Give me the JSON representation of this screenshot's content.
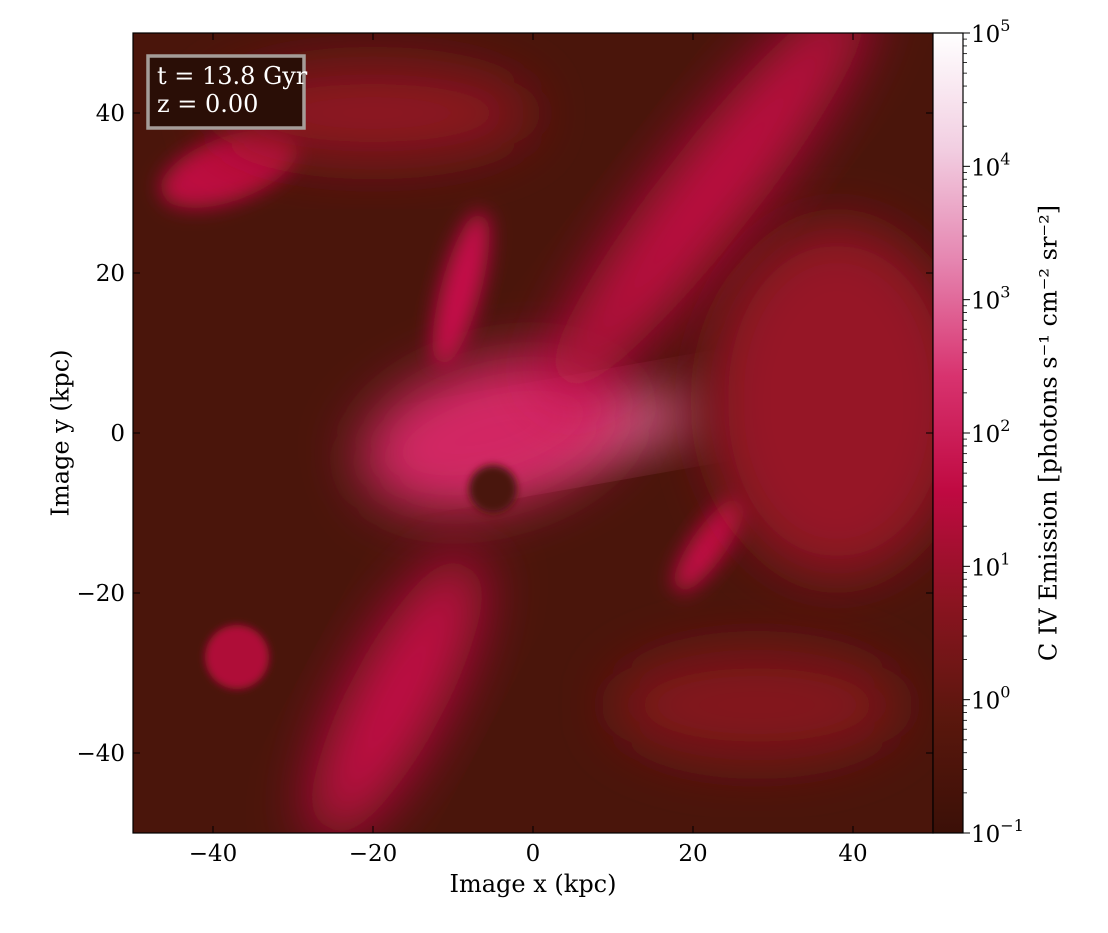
{
  "chart_data": {
    "type": "heatmap",
    "title": "",
    "xlabel": "Image x  (kpc)",
    "ylabel": "Image y  (kpc)",
    "xlim": [
      -50,
      50
    ],
    "ylim": [
      -50,
      50
    ],
    "xticks": [
      -40,
      -20,
      0,
      20,
      40
    ],
    "yticks": [
      -40,
      -20,
      0,
      20,
      40
    ],
    "annotation": {
      "line1": "t = 13.8 Gyr",
      "line2": "z = 0.00"
    },
    "colorbar": {
      "label": "C IV Emission [photons s⁻¹ cm⁻² sr⁻²]",
      "scale": "log",
      "range": [
        0.1,
        100000
      ],
      "ticks": [
        {
          "value": 0.1,
          "base": "10",
          "exp": "−1"
        },
        {
          "value": 1,
          "base": "10",
          "exp": "0"
        },
        {
          "value": 10,
          "base": "10",
          "exp": "1"
        },
        {
          "value": 100,
          "base": "10",
          "exp": "2"
        },
        {
          "value": 1000,
          "base": "10",
          "exp": "3"
        },
        {
          "value": 10000,
          "base": "10",
          "exp": "4"
        },
        {
          "value": 100000,
          "base": "10",
          "exp": "5"
        }
      ],
      "colors": [
        "#3b1007",
        "#5a170d",
        "#8a1420",
        "#c00a42",
        "#d8336f",
        "#e585b0",
        "#f2cfe2",
        "#ffffff"
      ]
    },
    "emission_features": [
      {
        "name": "central-disk",
        "x": 4,
        "y": 0,
        "rx": 18,
        "ry": 3.5,
        "angle": 10,
        "log_value": 3.0
      },
      {
        "name": "inner-halo",
        "x": -5,
        "y": 0,
        "rx": 17,
        "ry": 9,
        "angle": 15,
        "log_value": 2.2
      },
      {
        "name": "filament-northeast",
        "x": 22,
        "y": 30,
        "rx": 32,
        "ry": 6,
        "angle": 52,
        "log_value": 1.5
      },
      {
        "name": "filament-southwest",
        "x": -17,
        "y": -33,
        "rx": 20,
        "ry": 6,
        "angle": 62,
        "log_value": 1.6
      },
      {
        "name": "plume-north",
        "x": -9,
        "y": 18,
        "rx": 10,
        "ry": 2.5,
        "angle": 75,
        "log_value": 1.7
      },
      {
        "name": "cloud-northwest",
        "x": -38,
        "y": 33,
        "rx": 9,
        "ry": 4,
        "angle": 20,
        "log_value": 1.5
      },
      {
        "name": "shell-east",
        "x": 22,
        "y": -14,
        "rx": 7,
        "ry": 2.2,
        "angle": 55,
        "log_value": 1.6
      },
      {
        "name": "shell-west-lower",
        "x": -37,
        "y": -28,
        "rx": 4,
        "ry": 4,
        "angle": 0,
        "log_value": 1.3
      },
      {
        "name": "diffuse-east",
        "x": 38,
        "y": 4,
        "rx": 16,
        "ry": 22,
        "angle": 0,
        "log_value": 0.9
      },
      {
        "name": "diffuse-north",
        "x": -20,
        "y": 40,
        "rx": 20,
        "ry": 6,
        "angle": 0,
        "log_value": 0.8
      },
      {
        "name": "diffuse-south",
        "x": 28,
        "y": -34,
        "rx": 18,
        "ry": 7,
        "angle": 0,
        "log_value": 0.6
      },
      {
        "name": "void-center",
        "x": -5,
        "y": -7,
        "rx": 3,
        "ry": 3,
        "angle": 0,
        "log_value": -0.6
      }
    ]
  }
}
